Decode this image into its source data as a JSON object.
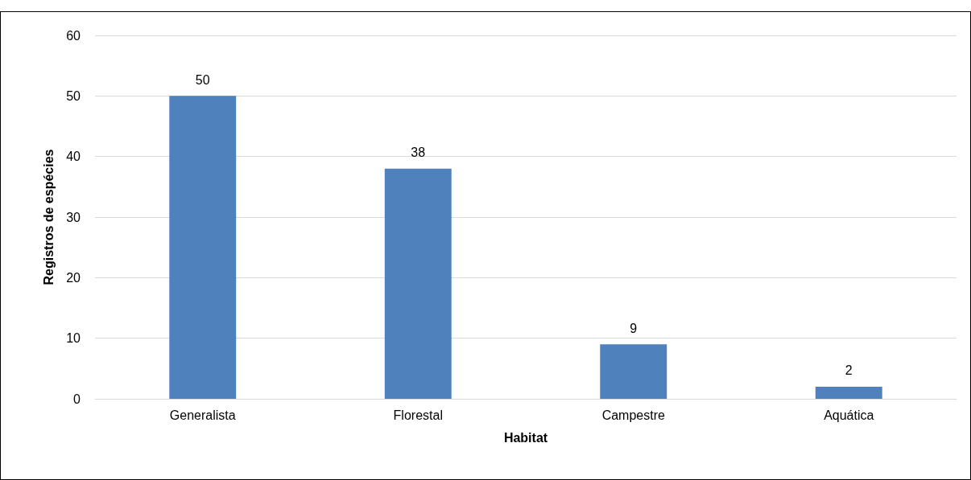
{
  "chart_data": {
    "type": "bar",
    "xlabel": "Habitat",
    "ylabel": "Registros de espécies",
    "categories": [
      "Generalista",
      "Florestal",
      "Campestre",
      "Aquática"
    ],
    "values": [
      50,
      38,
      9,
      2
    ],
    "color": "#4f81bd",
    "ylim": [
      0,
      60
    ],
    "yticks": [
      0,
      10,
      20,
      30,
      40,
      50,
      60
    ],
    "grid": "y",
    "data_labels": true
  }
}
